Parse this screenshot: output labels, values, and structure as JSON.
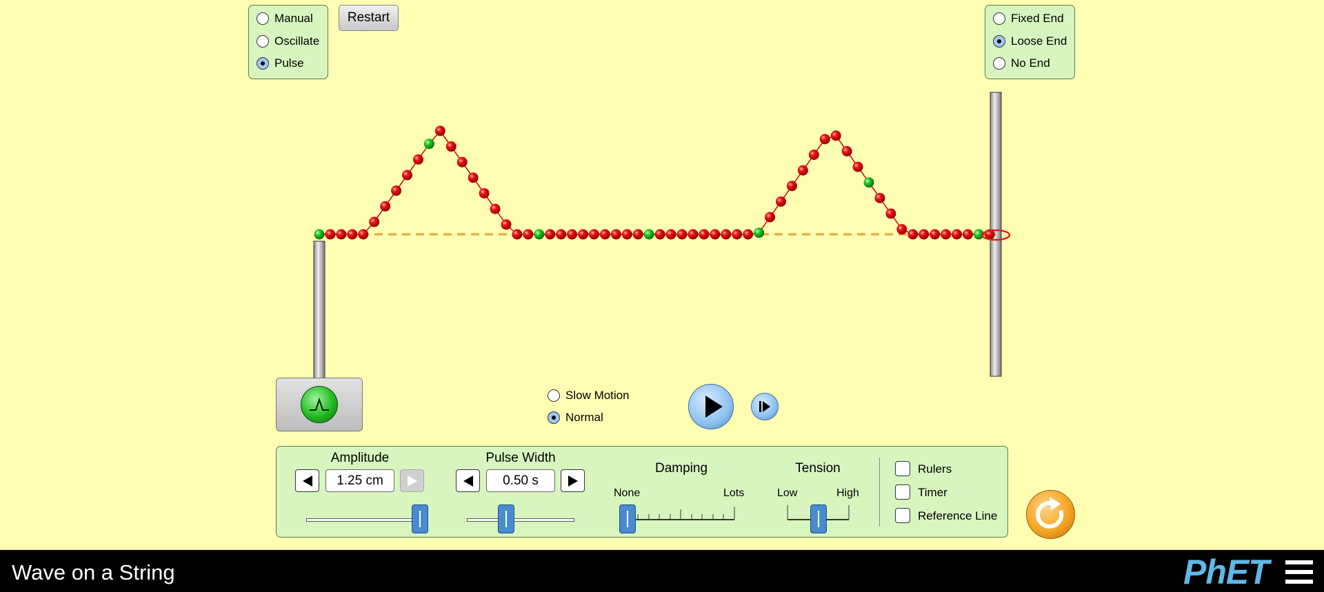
{
  "mode": {
    "options": [
      {
        "label": "Manual",
        "selected": false
      },
      {
        "label": "Oscillate",
        "selected": false
      },
      {
        "label": "Pulse",
        "selected": true
      }
    ]
  },
  "restart_label": "Restart",
  "end_type": {
    "options": [
      {
        "label": "Fixed End",
        "selected": false
      },
      {
        "label": "Loose End",
        "selected": true
      },
      {
        "label": "No End",
        "selected": false
      }
    ]
  },
  "speed": {
    "options": [
      {
        "label": "Slow Motion",
        "selected": false
      },
      {
        "label": "Normal",
        "selected": true
      }
    ]
  },
  "controls": {
    "amplitude": {
      "label": "Amplitude",
      "value": "1.25 cm",
      "level": 0.98
    },
    "pulse_width": {
      "label": "Pulse Width",
      "value": "0.50 s",
      "level": 0.37
    },
    "damping": {
      "label": "Damping",
      "min_label": "None",
      "max_label": "Lots",
      "level": 0.0
    },
    "tension": {
      "label": "Tension",
      "min_label": "Low",
      "max_label": "High",
      "level": 0.5
    }
  },
  "checkboxes": [
    {
      "label": "Rulers",
      "checked": false
    },
    {
      "label": "Timer",
      "checked": false
    },
    {
      "label": "Reference Line",
      "checked": false
    }
  ],
  "footer": {
    "title": "Wave on a String",
    "logo_text": "PhET"
  },
  "colors": {
    "background": "#ffffb4",
    "panel": "#d8f5c0",
    "bead": "#ee1111",
    "bead_marked": "#22cc22",
    "reset": "#f5a623"
  }
}
